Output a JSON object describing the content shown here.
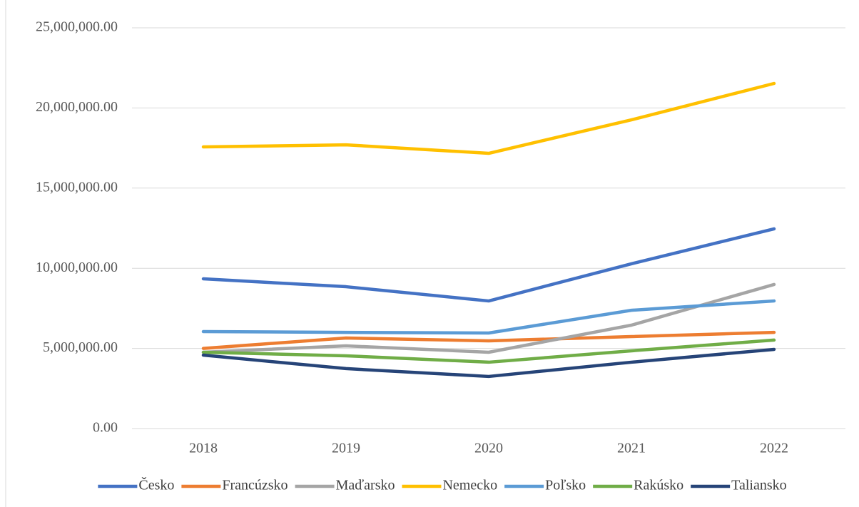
{
  "chart_data": {
    "type": "line",
    "categories": [
      "2018",
      "2019",
      "2020",
      "2021",
      "2022"
    ],
    "series": [
      {
        "name": "Česko",
        "color": "#4472c4",
        "values": [
          9340000,
          8850000,
          7960000,
          10280000,
          12460000
        ]
      },
      {
        "name": "Francúzsko",
        "color": "#ed7d31",
        "values": [
          5000000,
          5650000,
          5470000,
          5740000,
          6000000
        ]
      },
      {
        "name": "Maďarsko",
        "color": "#a5a5a5",
        "values": [
          4760000,
          5160000,
          4760000,
          6450000,
          8990000
        ]
      },
      {
        "name": "Nemecko",
        "color": "#ffc000",
        "values": [
          17570000,
          17700000,
          17170000,
          19260000,
          21530000
        ]
      },
      {
        "name": "Poľsko",
        "color": "#5b9bd5",
        "values": [
          6050000,
          6000000,
          5960000,
          7380000,
          7960000
        ]
      },
      {
        "name": "Rakúsko",
        "color": "#70ad47",
        "values": [
          4760000,
          4540000,
          4140000,
          4850000,
          5520000
        ]
      },
      {
        "name": "Taliansko",
        "color": "#264478",
        "values": [
          4580000,
          3740000,
          3250000,
          4140000,
          4940000
        ]
      }
    ],
    "ylim": [
      0,
      25000000
    ],
    "yticks": [
      {
        "value": 0,
        "label": "0.00"
      },
      {
        "value": 5000000,
        "label": "5,000,000.00"
      },
      {
        "value": 10000000,
        "label": "10,000,000.00"
      },
      {
        "value": 15000000,
        "label": "15,000,000.00"
      },
      {
        "value": 20000000,
        "label": "20,000,000.00"
      },
      {
        "value": 25000000,
        "label": "25,000,000.00"
      }
    ],
    "grid": true,
    "legend": "bottom"
  }
}
